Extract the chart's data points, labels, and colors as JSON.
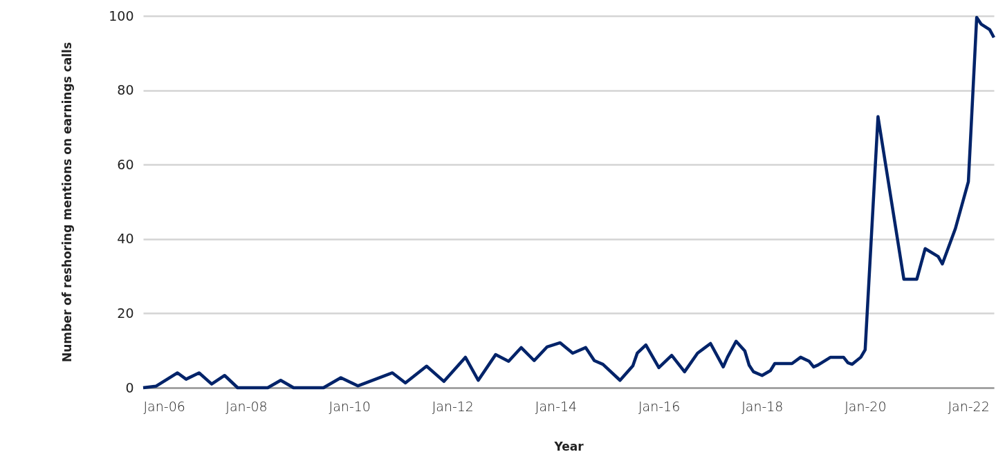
{
  "chart_data": {
    "type": "line",
    "xlabel": "Year",
    "ylabel": "Number of reshoring mentions on earnings calls",
    "x": [
      "2006-01",
      "2006-04",
      "2006-09",
      "2006-11",
      "2007-02",
      "2007-05",
      "2007-08",
      "2007-11",
      "2008-06",
      "2008-09",
      "2008-12",
      "2009-07",
      "2009-11",
      "2010-03",
      "2010-11",
      "2011-02",
      "2011-07",
      "2011-11",
      "2012-04",
      "2012-07",
      "2012-11",
      "2013-02",
      "2013-05",
      "2013-08",
      "2013-11",
      "2014-02",
      "2014-05",
      "2014-08",
      "2014-10",
      "2014-12",
      "2015-04",
      "2015-07",
      "2015-08",
      "2015-10",
      "2016-01",
      "2016-04",
      "2016-07",
      "2016-10",
      "2017-01",
      "2017-04",
      "2017-05",
      "2017-07",
      "2017-09",
      "2017-10",
      "2017-11",
      "2018-01",
      "2018-03",
      "2018-04",
      "2018-08",
      "2018-10",
      "2018-12",
      "2019-01",
      "2019-02",
      "2019-05",
      "2019-08",
      "2019-09",
      "2019-10",
      "2019-12",
      "2020-01",
      "2020-04",
      "2020-10",
      "2021-01",
      "2021-03",
      "2021-06",
      "2021-07",
      "2021-10",
      "2022-01",
      "2022-03",
      "2022-04",
      "2022-06",
      "2022-07"
    ],
    "series": [
      {
        "color": "#002369",
        "values": [
          0,
          0.4,
          4,
          2.3,
          4,
          1,
          3.3,
          0,
          0,
          2,
          0,
          0,
          2.7,
          0.5,
          4,
          1.3,
          5.8,
          1.7,
          8.2,
          2,
          8.9,
          7.1,
          10.8,
          7.3,
          11,
          12.1,
          9.3,
          10.8,
          7.3,
          6.3,
          2,
          5.9,
          9.3,
          11.5,
          5.4,
          8.7,
          4.3,
          9.3,
          11.9,
          5.6,
          8.2,
          12.5,
          9.9,
          6.1,
          4.3,
          3.3,
          4.6,
          6.5,
          6.5,
          8.2,
          7.1,
          5.6,
          6.1,
          8.2,
          8.2,
          6.7,
          6.3,
          8.2,
          10.2,
          72.9,
          29.2,
          29.2,
          37.4,
          35.3,
          33.3,
          42.8,
          55.4,
          99.6,
          97.8,
          96.3,
          94.2
        ]
      }
    ],
    "xlim": [
      "2006-01",
      "2022-07"
    ],
    "xticks": [
      {
        "value": "2006-01",
        "label": "Jan-06"
      },
      {
        "value": "2008-01",
        "label": "Jan-08"
      },
      {
        "value": "2010-01",
        "label": "Jan-10"
      },
      {
        "value": "2012-01",
        "label": "Jan-12"
      },
      {
        "value": "2014-01",
        "label": "Jan-14"
      },
      {
        "value": "2016-01",
        "label": "Jan-16"
      },
      {
        "value": "2018-01",
        "label": "Jan-18"
      },
      {
        "value": "2020-01",
        "label": "Jan-20"
      },
      {
        "value": "2022-01",
        "label": "Jan-22"
      }
    ],
    "ylim": [
      0,
      100
    ],
    "yticks": [
      0,
      20,
      40,
      60,
      80,
      100
    ],
    "grid": "y",
    "line_style": "solid"
  }
}
